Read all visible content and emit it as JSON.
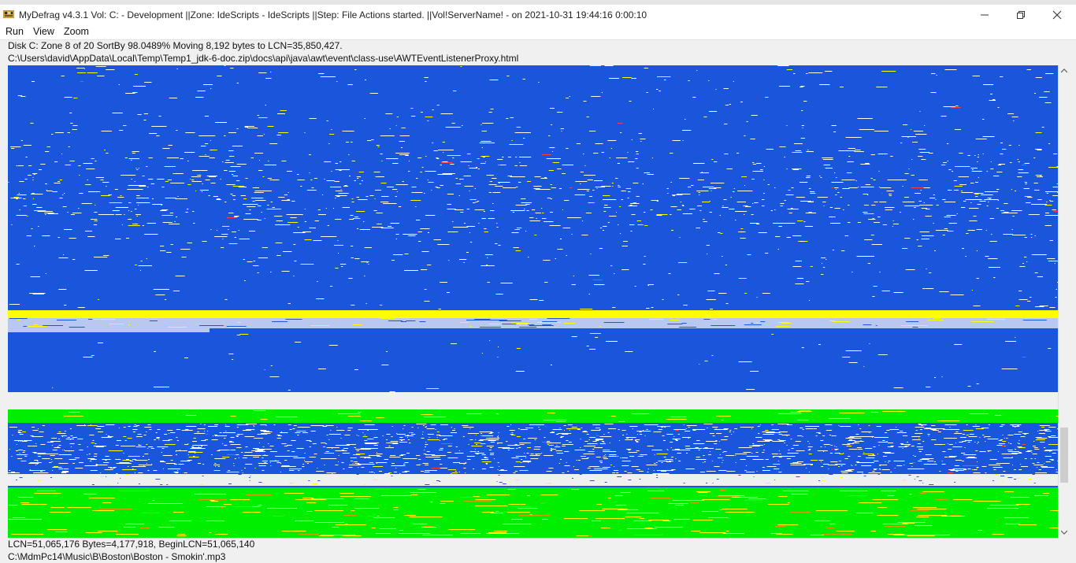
{
  "window": {
    "title": "MyDefrag v4.3.1    Vol: C: - Development ||Zone: IdeScripts - IdeScripts ||Step: File Actions started. ||Vol!ServerName! -  on 2021-10-31 19:44:16 0:00:10"
  },
  "menu": {
    "items": [
      "Run",
      "View",
      "Zoom"
    ]
  },
  "status": {
    "line1": "Disk C:    Zone 8 of 20   SortBy    98.0489%    Moving 8,192 bytes to LCN=35,850,427.",
    "line2": "C:\\Users\\david\\AppData\\Local\\Temp\\Temp1_jdk-6-doc.zip\\docs\\api\\java\\awt\\event\\class-use\\AWTEventListenerProxy.html"
  },
  "footer": {
    "line1": "LCN=51,065,176     Bytes=4,177,918, BeginLCN=51,065,140",
    "line2": "C:\\MdmPc14\\Music\\B\\Boston\\Boston - Smokin'.mp3"
  },
  "colors": {
    "free": "#1a56db",
    "file": "#ffffff",
    "fragmented": "#ffff00",
    "directory": "#00ee00",
    "mft": "#b8c8f0",
    "reserved": "#f0f0f0",
    "busy": "#ff4040"
  }
}
